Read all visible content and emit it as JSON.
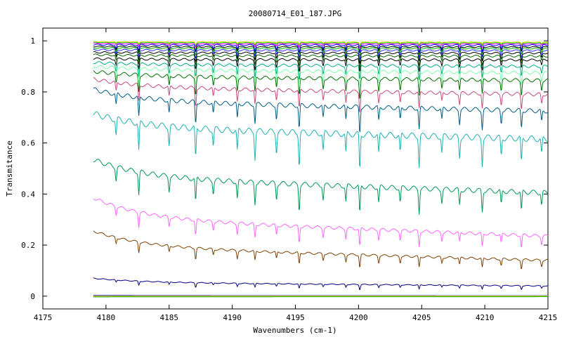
{
  "chart_data": {
    "type": "line",
    "title": "20080714_E01_187.JPG",
    "xlabel": "Wavenumbers (cm-1)",
    "ylabel": "Transmitance",
    "xlim": [
      4175,
      4215
    ],
    "ylim": [
      -0.05,
      1.05
    ],
    "x_ticks": [
      4175,
      4180,
      4185,
      4190,
      4195,
      4200,
      4205,
      4210,
      4215
    ],
    "y_ticks": [
      0,
      0.2,
      0.4,
      0.6,
      0.8,
      1
    ],
    "y_tick_labels": [
      "0",
      "0.2",
      "0.4",
      "0.6",
      "0.8",
      "1"
    ],
    "grid": false,
    "legend": "none",
    "x_start": 4179,
    "x_end": 4215,
    "line_positions": [
      4180.8,
      4182.6,
      4185.0,
      4187.1,
      4188.5,
      4190.4,
      4191.8,
      4193.5,
      4195.3,
      4197.2,
      4199.0,
      4200.1,
      4201.6,
      4203.3,
      4204.8,
      4206.6,
      4208.0,
      4209.8,
      4211.3,
      4212.9,
      4214.5
    ],
    "line_strengths": [
      0.45,
      0.8,
      0.5,
      0.85,
      0.45,
      0.6,
      0.75,
      0.55,
      0.9,
      0.5,
      0.55,
      1.0,
      0.55,
      0.5,
      0.85,
      0.45,
      0.55,
      0.75,
      0.5,
      0.7,
      0.45
    ],
    "series": [
      {
        "color": "#000080",
        "level_start": 0.07,
        "level_end": 0.04,
        "depth": 0.02
      },
      {
        "color": "#804000",
        "level_start": 0.255,
        "level_end": 0.14,
        "depth": 0.05
      },
      {
        "color": "#ff66ff",
        "level_start": 0.385,
        "level_end": 0.235,
        "depth": 0.07
      },
      {
        "color": "#009955",
        "level_start": 0.535,
        "level_end": 0.405,
        "depth": 0.11
      },
      {
        "color": "#1fb2b2",
        "level_start": 0.715,
        "level_end": 0.615,
        "depth": 0.14
      },
      {
        "color": "#005c87",
        "level_start": 0.81,
        "level_end": 0.725,
        "depth": 0.1
      },
      {
        "color": "#c84a80",
        "level_start": 0.85,
        "level_end": 0.79,
        "depth": 0.08
      },
      {
        "color": "#007000",
        "level_start": 0.88,
        "level_end": 0.845,
        "depth": 0.08
      },
      {
        "color": "#7fffaa",
        "level_start": 0.9,
        "level_end": 0.875,
        "depth": 0.07
      },
      {
        "color": "#00b080",
        "level_start": 0.915,
        "level_end": 0.9,
        "depth": 0.06
      },
      {
        "color": "#000000",
        "level_start": 0.93,
        "level_end": 0.925,
        "depth": 0.05
      },
      {
        "color": "#006600",
        "level_start": 0.945,
        "level_end": 0.94,
        "depth": 0.045
      },
      {
        "color": "#000000",
        "level_start": 0.955,
        "level_end": 0.952,
        "depth": 0.04
      },
      {
        "color": "#2a2aff",
        "level_start": 0.965,
        "level_end": 0.962,
        "depth": 0.035
      },
      {
        "color": "#00aa00",
        "level_start": 0.972,
        "level_end": 0.97,
        "depth": 0.03
      },
      {
        "color": "#000000",
        "level_start": 0.978,
        "level_end": 0.976,
        "depth": 0.025
      },
      {
        "color": "#0000ff",
        "level_start": 0.985,
        "level_end": 0.983,
        "depth": 0.03
      },
      {
        "color": "#ff00ff",
        "level_start": 0.99,
        "level_end": 0.988,
        "depth": 0.015
      },
      {
        "color": "#00cc00",
        "level_start": 0.994,
        "level_end": 0.992,
        "depth": 0.012
      },
      {
        "color": "#dddd00",
        "level_start": 0.997,
        "level_end": 0.995,
        "depth": 0.01
      },
      {
        "color": "#ff0000",
        "level_start": 0.0,
        "level_end": 0.0,
        "depth": 0.0
      },
      {
        "color": "#0000ff",
        "level_start": 0.003,
        "level_end": 0.002,
        "depth": 0.0
      },
      {
        "color": "#00aa00",
        "level_start": -0.003,
        "level_end": -0.002,
        "depth": 0.0
      },
      {
        "color": "#dddd00",
        "level_start": 0.001,
        "level_end": 0.001,
        "depth": 0.0
      }
    ]
  }
}
